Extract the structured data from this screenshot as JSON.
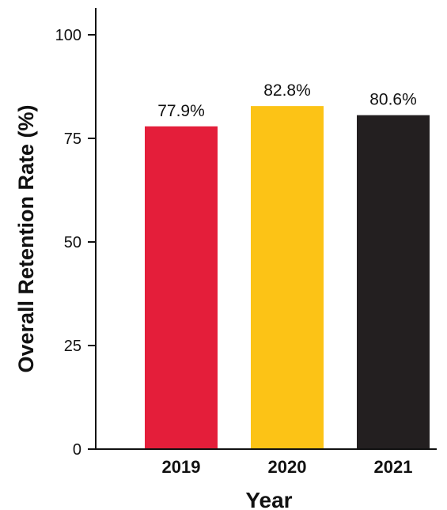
{
  "chart_data": {
    "type": "bar",
    "categories": [
      "2019",
      "2020",
      "2021"
    ],
    "values": [
      77.9,
      82.8,
      80.6
    ],
    "data_labels": [
      "77.9%",
      "82.8%",
      "80.6%"
    ],
    "bar_colors": [
      "#e41e3a",
      "#fcc316",
      "#231f20"
    ],
    "title": "",
    "xlabel": "Year",
    "ylabel": "Overall Retention Rate (%)",
    "ylim": [
      0,
      100
    ],
    "yticks": [
      0,
      25,
      50,
      75,
      100
    ],
    "grid": false
  }
}
